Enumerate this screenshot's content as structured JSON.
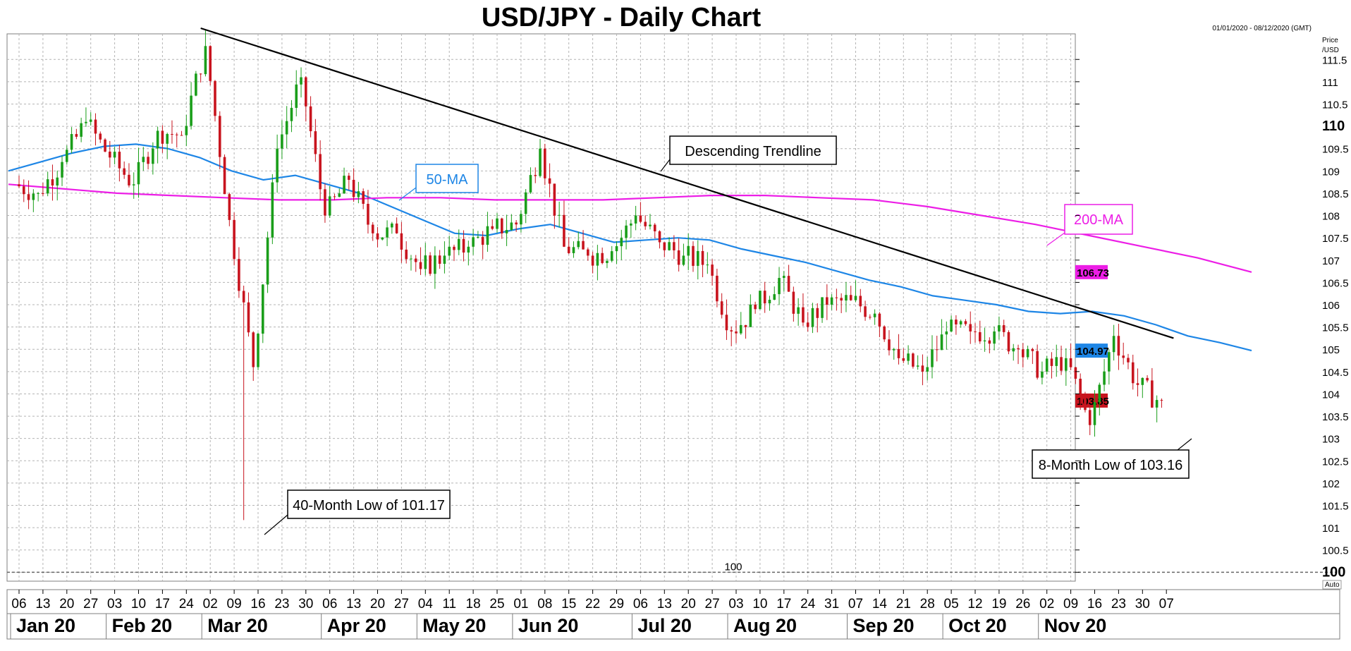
{
  "chart_data": {
    "type": "candlestick",
    "title": "USD/JPY - Daily Chart",
    "date_range": "01/01/2020 - 08/12/2020 (GMT)",
    "price_axis_label": [
      "Price",
      "/USD"
    ],
    "auto_label": "Auto",
    "ylim": [
      99.8,
      112.2
    ],
    "y_ticks": [
      "100",
      "100.5",
      "101",
      "101.5",
      "102",
      "102.5",
      "103",
      "103.5",
      "104",
      "104.5",
      "105",
      "105.5",
      "106",
      "106.5",
      "107",
      "107.5",
      "108",
      "108.5",
      "109",
      "109.5",
      "110",
      "110.5",
      "111",
      "111.5"
    ],
    "y_major_ticks": [
      "100",
      "110"
    ],
    "reference_line": {
      "value": 100,
      "label": "100",
      "color": "#333399"
    },
    "x_day_ticks": [
      "06",
      "13",
      "20",
      "27",
      "03",
      "10",
      "17",
      "24",
      "02",
      "09",
      "16",
      "23",
      "30",
      "06",
      "13",
      "20",
      "27",
      "04",
      "11",
      "18",
      "25",
      "01",
      "08",
      "15",
      "22",
      "29",
      "06",
      "13",
      "20",
      "27",
      "03",
      "10",
      "17",
      "24",
      "31",
      "07",
      "14",
      "21",
      "28",
      "05",
      "12",
      "19",
      "26",
      "02",
      "09",
      "16",
      "23",
      "30",
      "07"
    ],
    "x_month_labels": [
      "Jan 20",
      "Feb 20",
      "Mar 20",
      "Apr 20",
      "May 20",
      "Jun 20",
      "Jul 20",
      "Aug 20",
      "Sep 20",
      "Oct 20",
      "Nov 20"
    ],
    "month_start_week_index": [
      0,
      4,
      8,
      13,
      17,
      21,
      26,
      30,
      35,
      39,
      43
    ],
    "up_color": "#1a9e1a",
    "down_color": "#c8141e",
    "weekly_closes": [
      108.5,
      109.2,
      110.1,
      109.3,
      108.7,
      109.9,
      109.8,
      111.8,
      107.9,
      104.6,
      109.5,
      111.1,
      108.0,
      108.8,
      107.6,
      107.6,
      106.8,
      107.1,
      107.3,
      107.7,
      107.8,
      109.5,
      107.3,
      107.1,
      107.2,
      108.0,
      107.4,
      107.1,
      106.9,
      105.4,
      105.9,
      106.6,
      105.6,
      106.0,
      106.1,
      105.8,
      104.8,
      104.5,
      105.4,
      105.4,
      105.4,
      105.0,
      104.5,
      104.8,
      103.3,
      105.3,
      104.2,
      103.8
    ],
    "anchor_prices": {
      "start": 108.7,
      "high": 112.2,
      "low": 101.17,
      "low_week": 9,
      "last": 103.85
    },
    "series": [
      {
        "name": "50-MA",
        "color": "#1e86e6",
        "last_value": "104.97",
        "values": [
          109.0,
          109.2,
          109.4,
          109.55,
          109.6,
          109.5,
          109.3,
          109.0,
          108.8,
          108.9,
          108.7,
          108.5,
          108.2,
          107.9,
          107.6,
          107.55,
          107.7,
          107.8,
          107.6,
          107.4,
          107.45,
          107.5,
          107.45,
          107.25,
          107.1,
          106.95,
          106.75,
          106.55,
          106.4,
          106.2,
          106.1,
          106.0,
          105.85,
          105.8,
          105.85,
          105.75,
          105.55,
          105.3,
          105.15,
          104.97
        ]
      },
      {
        "name": "200-MA",
        "color": "#ec1ee6",
        "last_value": "106.73",
        "values": [
          108.7,
          108.6,
          108.5,
          108.45,
          108.4,
          108.35,
          108.35,
          108.4,
          108.4,
          108.35,
          108.35,
          108.35,
          108.4,
          108.45,
          108.45,
          108.4,
          108.35,
          108.2,
          108.0,
          107.8,
          107.55,
          107.3,
          107.05,
          106.73
        ]
      }
    ],
    "trendline": {
      "name": "Descending Trendline",
      "start": {
        "week": 7.6,
        "value": 112.2
      },
      "end": {
        "week": 48.3,
        "value": 105.25
      },
      "color": "#000000"
    },
    "last_price": "103.85",
    "annotations": [
      {
        "label": "Descending Trendline",
        "text_color": "#000000"
      },
      {
        "label": "50-MA",
        "text_color": "#1e86e6"
      },
      {
        "label": "200-MA",
        "text_color": "#ec1ee6"
      },
      {
        "label": "40-Month Low of 101.17",
        "text_color": "#000000"
      },
      {
        "label": "8-Month Low of 103.16",
        "text_color": "#000000"
      }
    ],
    "grid": true
  }
}
